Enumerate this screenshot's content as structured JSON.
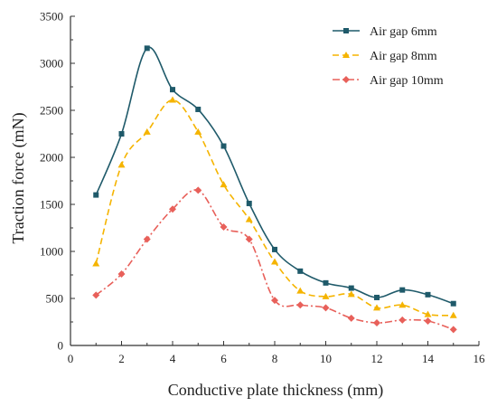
{
  "chart_data": {
    "type": "line",
    "xlabel": "Conductive plate thickness (mm)",
    "ylabel": "Traction force (mN)",
    "xlim": [
      0,
      16
    ],
    "ylim": [
      0,
      3500
    ],
    "xticks": [
      0,
      2,
      4,
      6,
      8,
      10,
      12,
      14,
      16
    ],
    "yticks": [
      0,
      500,
      1000,
      1500,
      2000,
      2500,
      3000,
      3500
    ],
    "x": [
      1,
      2,
      3,
      4,
      5,
      6,
      7,
      8,
      9,
      10,
      11,
      12,
      13,
      14,
      15
    ],
    "legend_position": "top-right",
    "grid": false,
    "series": [
      {
        "name": "Air gap 6mm",
        "color": "#1f5a6a",
        "line_style": "solid",
        "marker": "square",
        "values": [
          1600,
          2250,
          3160,
          2720,
          2510,
          2120,
          1510,
          1020,
          790,
          665,
          610,
          510,
          590,
          540,
          445
        ]
      },
      {
        "name": "Air gap 8mm",
        "color": "#f5b400",
        "line_style": "dashed",
        "marker": "triangle",
        "values": [
          870,
          1920,
          2270,
          2610,
          2270,
          1710,
          1340,
          890,
          580,
          520,
          545,
          400,
          430,
          330,
          320
        ]
      },
      {
        "name": "Air gap 10mm",
        "color": "#e8605a",
        "line_style": "dash-dot",
        "marker": "diamond",
        "values": [
          535,
          760,
          1130,
          1450,
          1650,
          1260,
          1130,
          480,
          430,
          400,
          290,
          240,
          270,
          260,
          170
        ]
      }
    ]
  }
}
